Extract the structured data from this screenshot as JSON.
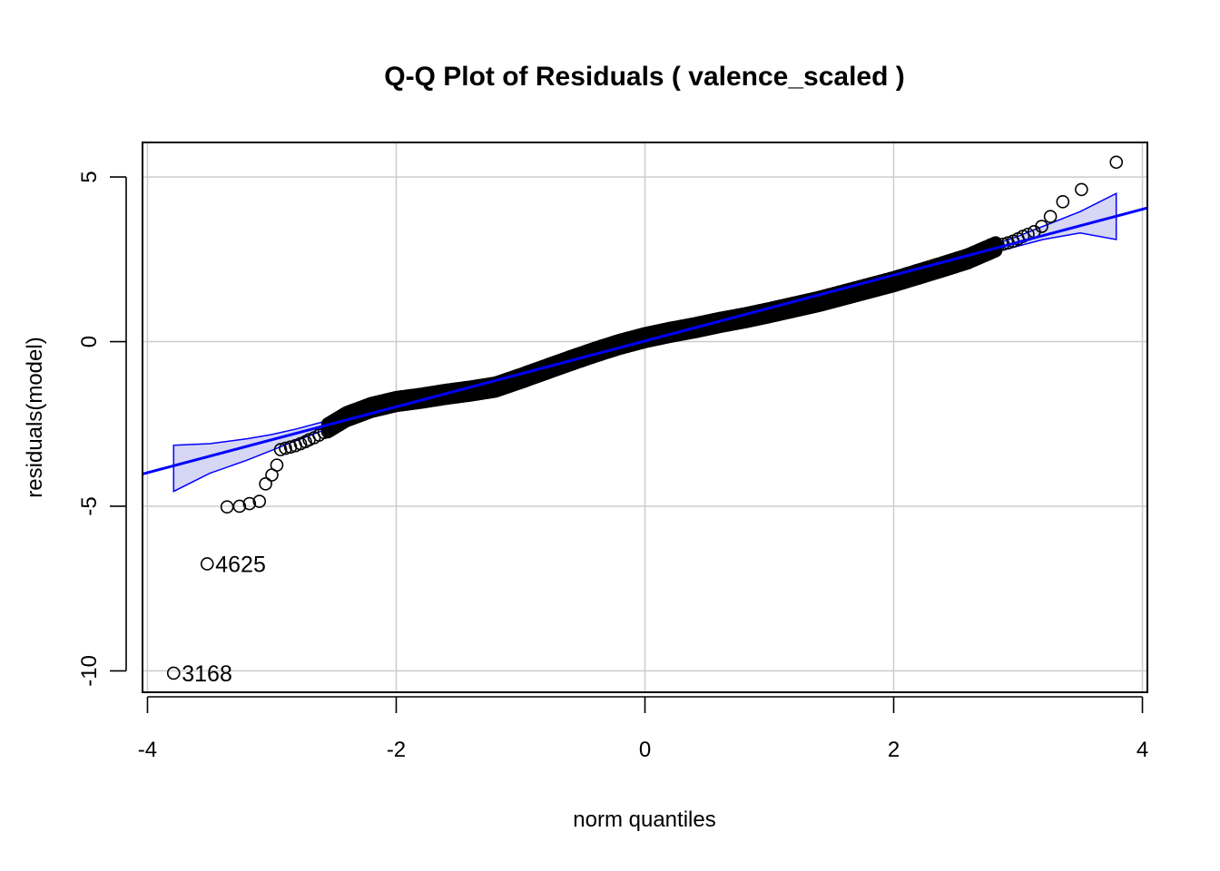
{
  "chart_data": {
    "type": "scatter",
    "title": "Q-Q Plot of Residuals ( valence_scaled )",
    "xlabel": "norm quantiles",
    "ylabel": "residuals(model)",
    "xlim": [
      -4.04,
      4.04
    ],
    "ylim": [
      -10.65,
      6.05
    ],
    "x_ticks": [
      -4,
      -2,
      0,
      2,
      4
    ],
    "y_ticks": [
      -10,
      -5,
      0,
      5
    ],
    "grid": true,
    "colors": {
      "reference_line": "#0000ff",
      "envelope_fill": "#d6d6f5",
      "points": "#000000",
      "grid": "#cccccc"
    },
    "reference_line": {
      "intercept": 0.02,
      "slope": 1.0
    },
    "envelope": {
      "x": [
        -3.79,
        -3.5,
        -3.2,
        -3.0,
        -2.8,
        -2.6,
        -2.4,
        -2.0,
        -1.0,
        0.0,
        1.0,
        2.0,
        2.4,
        2.6,
        2.8,
        3.0,
        3.2,
        3.5,
        3.79
      ],
      "upper": [
        -3.15,
        -3.1,
        -2.95,
        -2.82,
        -2.65,
        -2.45,
        -2.22,
        -1.88,
        -0.9,
        0.1,
        1.1,
        2.1,
        2.5,
        2.72,
        2.94,
        3.2,
        3.5,
        3.95,
        4.5
      ],
      "lower": [
        -4.55,
        -4.0,
        -3.6,
        -3.3,
        -3.0,
        -2.72,
        -2.45,
        -2.05,
        -1.05,
        -0.05,
        0.9,
        1.9,
        2.3,
        2.5,
        2.7,
        2.9,
        3.1,
        3.3,
        3.1
      ]
    },
    "points": [
      {
        "x": -3.79,
        "y": -10.07,
        "label": "3168"
      },
      {
        "x": -3.52,
        "y": -6.75,
        "label": "4625"
      },
      {
        "x": -3.36,
        "y": -5.02
      },
      {
        "x": -3.26,
        "y": -5.0
      },
      {
        "x": -3.18,
        "y": -4.92
      },
      {
        "x": -3.1,
        "y": -4.85
      },
      {
        "x": -3.05,
        "y": -4.32
      },
      {
        "x": -3.0,
        "y": -4.05
      },
      {
        "x": -2.96,
        "y": -3.75
      },
      {
        "x": -2.93,
        "y": -3.28
      },
      {
        "x": -2.89,
        "y": -3.24
      },
      {
        "x": -2.85,
        "y": -3.2
      },
      {
        "x": -2.81,
        "y": -3.16
      },
      {
        "x": -2.77,
        "y": -3.1
      },
      {
        "x": -2.73,
        "y": -3.04
      },
      {
        "x": -2.7,
        "y": -2.98
      },
      {
        "x": -2.66,
        "y": -2.92
      },
      {
        "x": -2.62,
        "y": -2.84
      },
      {
        "x": -2.58,
        "y": -2.76
      },
      {
        "x": 2.84,
        "y": 2.92
      },
      {
        "x": 2.88,
        "y": 2.96
      },
      {
        "x": 2.92,
        "y": 3.0
      },
      {
        "x": 2.96,
        "y": 3.05
      },
      {
        "x": 3.0,
        "y": 3.12
      },
      {
        "x": 3.04,
        "y": 3.2
      },
      {
        "x": 3.08,
        "y": 3.26
      },
      {
        "x": 3.13,
        "y": 3.34
      },
      {
        "x": 3.19,
        "y": 3.5
      },
      {
        "x": 3.26,
        "y": 3.8
      },
      {
        "x": 3.36,
        "y": 4.25
      },
      {
        "x": 3.51,
        "y": 4.62
      },
      {
        "x": 3.79,
        "y": 5.45
      }
    ],
    "dense_band": {
      "x": [
        -2.55,
        -2.4,
        -2.2,
        -2.0,
        -1.8,
        -1.6,
        -1.4,
        -1.2,
        -1.0,
        -0.8,
        -0.6,
        -0.4,
        -0.2,
        0.0,
        0.2,
        0.4,
        0.6,
        0.8,
        1.0,
        1.2,
        1.4,
        1.6,
        1.8,
        2.0,
        2.2,
        2.4,
        2.6,
        2.82
      ],
      "y_mid": [
        -2.62,
        -2.28,
        -2.0,
        -1.82,
        -1.72,
        -1.6,
        -1.5,
        -1.38,
        -1.12,
        -0.85,
        -0.58,
        -0.32,
        -0.08,
        0.12,
        0.28,
        0.42,
        0.58,
        0.72,
        0.88,
        1.05,
        1.22,
        1.42,
        1.62,
        1.82,
        2.05,
        2.28,
        2.52,
        2.88
      ],
      "half_width": 0.12
    }
  }
}
